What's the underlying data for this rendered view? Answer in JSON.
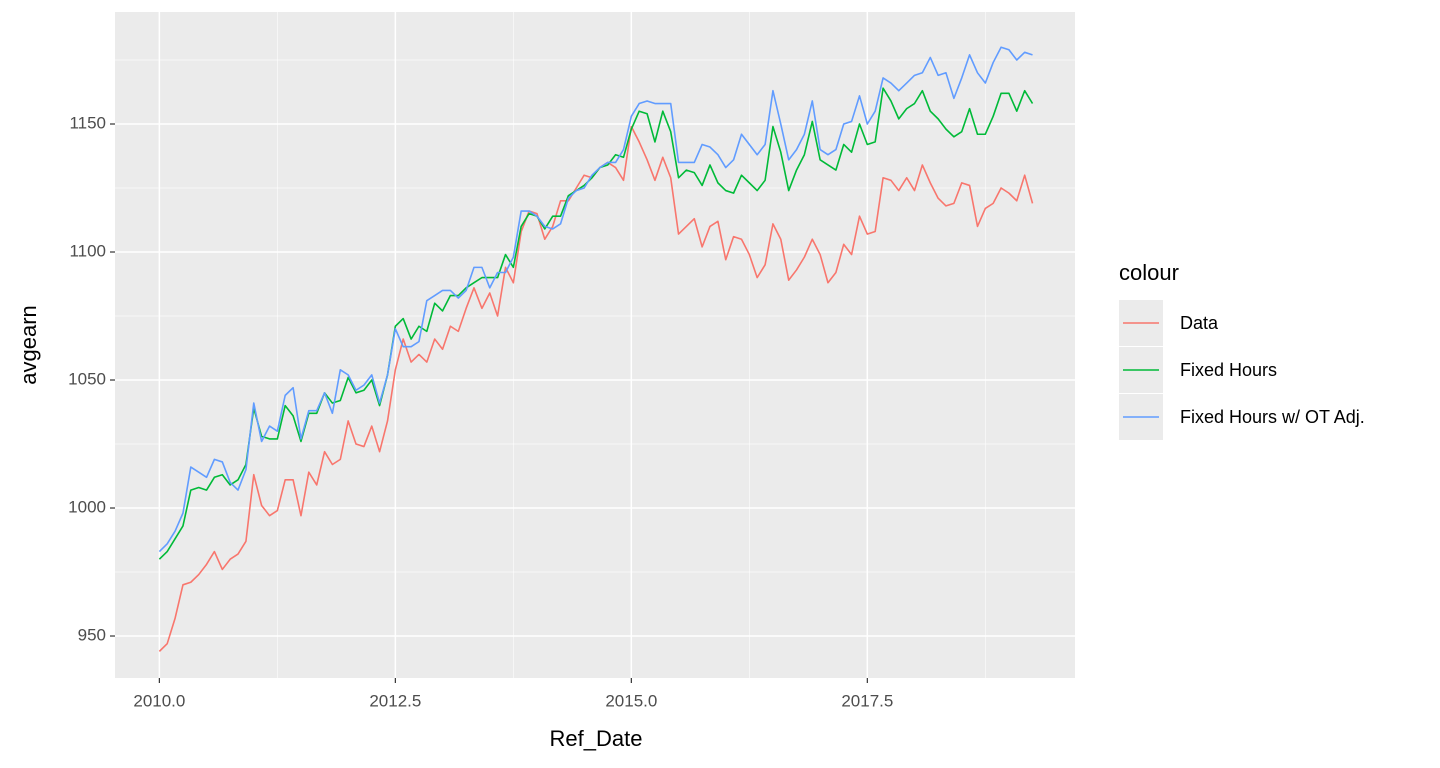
{
  "chart_data": {
    "type": "line",
    "x_label": "Ref_Date",
    "y_label": "avgearn",
    "legend_title": "colour",
    "legend": "right",
    "grid": true,
    "xlim": [
      2009.53,
      2019.7
    ],
    "ylim": [
      933.6,
      1193.75
    ],
    "xticks": [
      {
        "value": 2010,
        "label": "2010.0"
      },
      2012.5,
      {
        "value": 2015,
        "label": "2015.0"
      },
      2017.5
    ],
    "yticks": [
      950,
      1000,
      1050,
      1100,
      1150
    ],
    "x": [
      2010,
      2010.083,
      2010.167,
      2010.25,
      2010.333,
      2010.417,
      2010.5,
      2010.583,
      2010.667,
      2010.75,
      2010.833,
      2010.917,
      2011,
      2011.083,
      2011.167,
      2011.25,
      2011.333,
      2011.417,
      2011.5,
      2011.583,
      2011.667,
      2011.75,
      2011.833,
      2011.917,
      2012,
      2012.083,
      2012.167,
      2012.25,
      2012.333,
      2012.417,
      2012.5,
      2012.583,
      2012.667,
      2012.75,
      2012.833,
      2012.917,
      2013,
      2013.083,
      2013.167,
      2013.25,
      2013.333,
      2013.417,
      2013.5,
      2013.583,
      2013.667,
      2013.75,
      2013.833,
      2013.917,
      2014,
      2014.083,
      2014.167,
      2014.25,
      2014.333,
      2014.417,
      2014.5,
      2014.583,
      2014.667,
      2014.75,
      2014.833,
      2014.917,
      2015,
      2015.083,
      2015.167,
      2015.25,
      2015.333,
      2015.417,
      2015.5,
      2015.583,
      2015.667,
      2015.75,
      2015.833,
      2015.917,
      2016,
      2016.083,
      2016.167,
      2016.25,
      2016.333,
      2016.417,
      2016.5,
      2016.583,
      2016.667,
      2016.75,
      2016.833,
      2016.917,
      2017,
      2017.083,
      2017.167,
      2017.25,
      2017.333,
      2017.417,
      2017.5,
      2017.583,
      2017.667,
      2017.75,
      2017.833,
      2017.917,
      2018,
      2018.083,
      2018.167,
      2018.25,
      2018.333,
      2018.417,
      2018.5,
      2018.583,
      2018.667,
      2018.75,
      2018.833,
      2018.917,
      2019,
      2019.083,
      2019.167,
      2019.25
    ],
    "series": [
      {
        "name": "Data",
        "color": "#F8766D",
        "values": [
          944,
          947,
          957,
          970,
          971,
          974,
          978,
          983,
          976,
          980,
          982,
          987,
          1013,
          1001,
          997,
          999,
          1011,
          1011,
          997,
          1014,
          1009,
          1022,
          1017,
          1019,
          1034,
          1025,
          1024,
          1032,
          1022,
          1034,
          1054,
          1066,
          1057,
          1060,
          1057,
          1066,
          1062,
          1071,
          1069,
          1078,
          1086,
          1078,
          1084,
          1075,
          1094,
          1088,
          1108,
          1116,
          1115,
          1105,
          1110,
          1120,
          1120,
          1125,
          1130,
          1129,
          1133,
          1135,
          1133,
          1128,
          1149,
          1143,
          1136,
          1128,
          1137,
          1129,
          1107,
          1110,
          1113,
          1102,
          1110,
          1112,
          1097,
          1106,
          1105,
          1099,
          1090,
          1095,
          1111,
          1105,
          1089,
          1093,
          1098,
          1105,
          1099,
          1088,
          1092,
          1103,
          1099,
          1114,
          1107,
          1108,
          1129,
          1128,
          1124,
          1129,
          1124,
          1134,
          1127,
          1121,
          1118,
          1119,
          1127,
          1126,
          1110,
          1117,
          1119,
          1125,
          1123,
          1120,
          1130,
          1119
        ]
      },
      {
        "name": "Fixed Hours",
        "color": "#00BA38",
        "values": [
          980,
          983,
          988,
          993,
          1007,
          1008,
          1007,
          1012,
          1013,
          1009,
          1011,
          1017,
          1039,
          1028,
          1027,
          1027,
          1040,
          1036,
          1026,
          1037,
          1037,
          1045,
          1041,
          1042,
          1051,
          1045,
          1046,
          1050,
          1040,
          1052,
          1071,
          1074,
          1066,
          1071,
          1069,
          1080,
          1077,
          1083,
          1083,
          1086,
          1088,
          1090,
          1090,
          1090,
          1099,
          1094,
          1110,
          1115,
          1114,
          1109,
          1114,
          1114,
          1122,
          1124,
          1126,
          1129,
          1133,
          1134,
          1138,
          1137,
          1148,
          1155,
          1154,
          1143,
          1155,
          1147,
          1129,
          1132,
          1131,
          1126,
          1134,
          1127,
          1124,
          1123,
          1130,
          1127,
          1124,
          1128,
          1149,
          1139,
          1124,
          1132,
          1138,
          1151,
          1136,
          1134,
          1132,
          1142,
          1139,
          1150,
          1142,
          1143,
          1164,
          1159,
          1152,
          1156,
          1158,
          1163,
          1155,
          1152,
          1148,
          1145,
          1147,
          1156,
          1146,
          1146,
          1153,
          1162,
          1162,
          1155,
          1163,
          1158
        ]
      },
      {
        "name": "Fixed Hours w/ OT Adj.",
        "color": "#619CFF",
        "values": [
          983,
          986,
          991,
          998,
          1016,
          1014,
          1012,
          1019,
          1018,
          1010,
          1007,
          1015,
          1041,
          1026,
          1032,
          1030,
          1044,
          1047,
          1027,
          1038,
          1038,
          1045,
          1037,
          1054,
          1052,
          1046,
          1048,
          1052,
          1041,
          1052,
          1070,
          1063,
          1063,
          1065,
          1081,
          1083,
          1085,
          1085,
          1082,
          1085,
          1094,
          1094,
          1086,
          1092,
          1092,
          1098,
          1116,
          1116,
          1114,
          1110,
          1109,
          1111,
          1121,
          1124,
          1125,
          1130,
          1133,
          1135,
          1135,
          1140,
          1153,
          1158,
          1159,
          1158,
          1158,
          1158,
          1135,
          1135,
          1135,
          1142,
          1141,
          1138,
          1133,
          1136,
          1146,
          1142,
          1138,
          1142,
          1163,
          1150,
          1136,
          1140,
          1146,
          1159,
          1140,
          1138,
          1140,
          1150,
          1151,
          1161,
          1150,
          1155,
          1168,
          1166,
          1163,
          1166,
          1169,
          1170,
          1176,
          1169,
          1170,
          1160,
          1168,
          1177,
          1170,
          1166,
          1174,
          1180,
          1179,
          1175,
          1178,
          1177
        ]
      }
    ]
  }
}
